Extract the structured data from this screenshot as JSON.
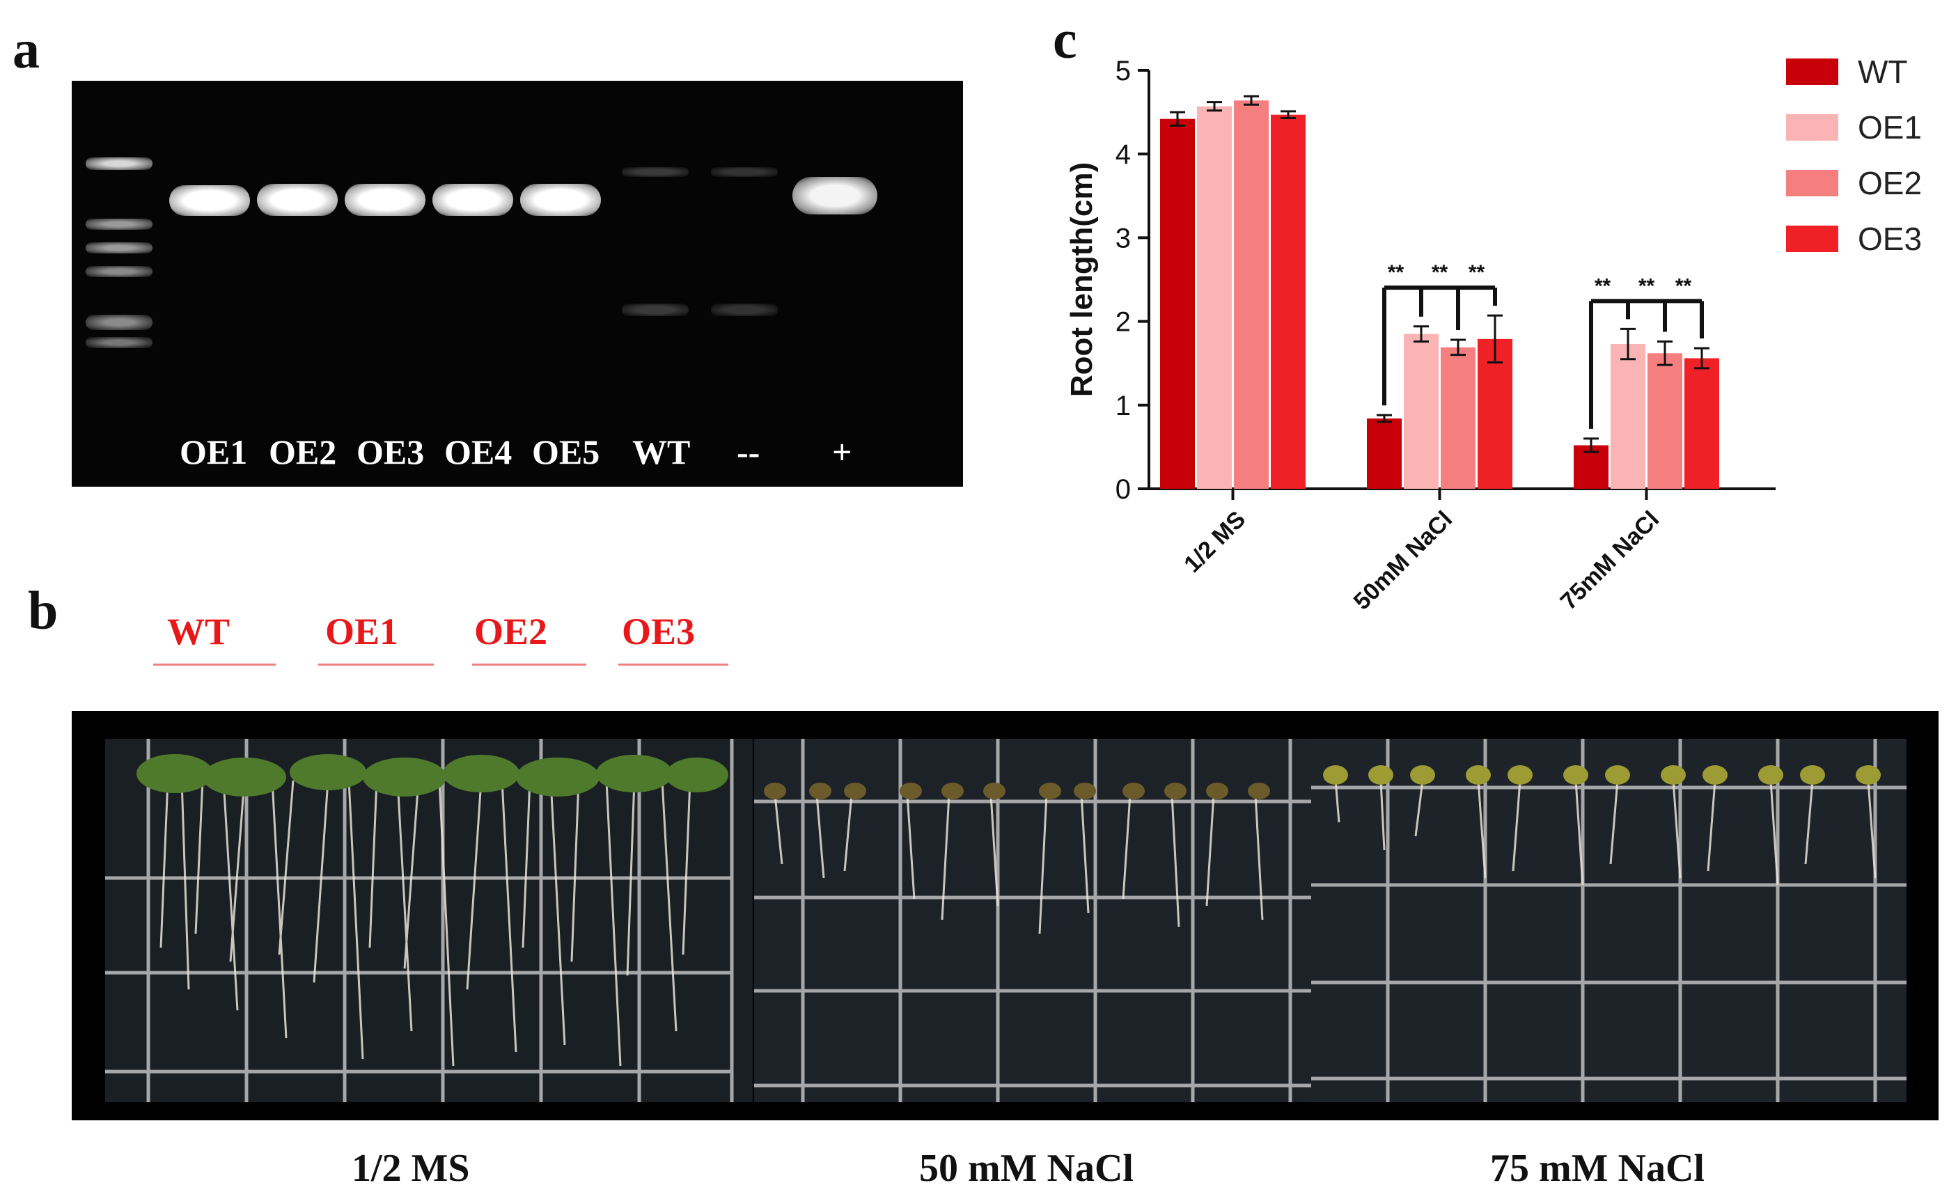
{
  "panels": {
    "a": "a",
    "b": "b",
    "c": "c"
  },
  "gel": {
    "lanes": [
      "OE1",
      "OE2",
      "OE3",
      "OE4",
      "OE5",
      "WT",
      "--",
      "+"
    ]
  },
  "plates": {
    "genotypes": [
      "WT",
      "OE1",
      "OE2",
      "OE3"
    ],
    "conditions": [
      "1/2 MS",
      "50 mM NaCl",
      "75 mM NaCl"
    ]
  },
  "chart_data": {
    "type": "bar",
    "title": "",
    "xlabel": "",
    "ylabel": "Root length(cm)",
    "ylim": [
      0,
      5
    ],
    "yticks": [
      "0",
      "1",
      "2",
      "3",
      "4",
      "5"
    ],
    "categories": [
      "1/2 MS",
      "50mM NaCl",
      "75mM NaCl"
    ],
    "series": [
      {
        "name": "WT",
        "color": "#c8000a",
        "values": [
          4.42,
          0.84,
          0.52
        ],
        "errors": [
          0.08,
          0.04,
          0.08
        ]
      },
      {
        "name": "OE1",
        "color": "#fbb4b4",
        "values": [
          4.57,
          1.85,
          1.73
        ],
        "errors": [
          0.05,
          0.09,
          0.18
        ]
      },
      {
        "name": "OE2",
        "color": "#f57e7e",
        "values": [
          4.64,
          1.69,
          1.62
        ],
        "errors": [
          0.05,
          0.09,
          0.14
        ]
      },
      {
        "name": "OE3",
        "color": "#f02027",
        "values": [
          4.47,
          1.79,
          1.56
        ],
        "errors": [
          0.04,
          0.28,
          0.12
        ]
      }
    ],
    "significance": "**",
    "legend_position": "top-right"
  }
}
